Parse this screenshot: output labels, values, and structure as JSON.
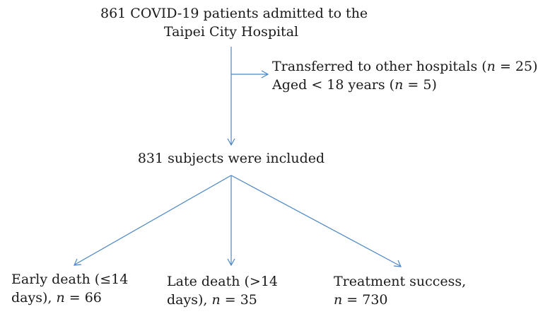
{
  "diagram": {
    "top_node": {
      "line1": "861 COVID-19 patients admitted to the",
      "line2": "Taipei City Hospital"
    },
    "exclusion_node": {
      "line1_prefix": "Transferred to other hospitals (",
      "line1_n": "n",
      "line1_suffix": " = 25)",
      "line2_prefix": "Aged < 18 years (",
      "line2_n": "n",
      "line2_suffix": " = 5)"
    },
    "included_node": {
      "text": "831 subjects were included"
    },
    "outcomes": [
      {
        "line1": "Early death (≤14",
        "line2_prefix": "days), ",
        "line2_n": "n",
        "line2_suffix": " = 66"
      },
      {
        "line1": "Late death (>14",
        "line2_prefix": "days), ",
        "line2_n": "n",
        "line2_suffix": " = 35"
      },
      {
        "line1": "Treatment success,",
        "line2_prefix": "",
        "line2_n": "n",
        "line2_suffix": " = 730"
      }
    ],
    "edge_color": "#4a86c5"
  }
}
